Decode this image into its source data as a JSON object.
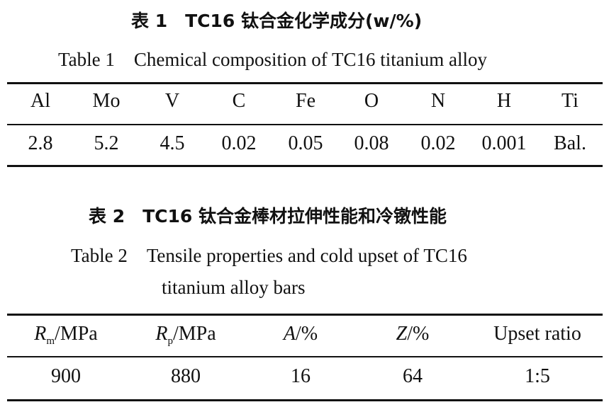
{
  "table1": {
    "title_cn": "表 1　TC16 钛合金化学成分(w/%)",
    "title_en": "Table 1　Chemical composition of TC16 titanium alloy",
    "headers": [
      "Al",
      "Mo",
      "V",
      "C",
      "Fe",
      "O",
      "N",
      "H",
      "Ti"
    ],
    "values": [
      "2.8",
      "5.2",
      "4.5",
      "0.02",
      "0.05",
      "0.08",
      "0.02",
      "0.001",
      "Bal."
    ]
  },
  "table2": {
    "title_cn": "表 2　TC16 钛合金棒材拉伸性能和冷镦性能",
    "title_en_line1": "Table 2　Tensile properties and cold upset of TC16",
    "title_en_line2": "titanium alloy bars",
    "headers": [
      {
        "sym": "R",
        "sub": "m",
        "unit": "/MPa"
      },
      {
        "sym": "R",
        "sub": "p",
        "unit": "/MPa"
      },
      {
        "sym": "A",
        "sub": "",
        "unit": "/%"
      },
      {
        "sym": "Z",
        "sub": "",
        "unit": "/%"
      },
      {
        "sym": "",
        "sub": "",
        "unit": "Upset ratio"
      }
    ],
    "values": [
      "900",
      "880",
      "16",
      "64",
      "1:5"
    ]
  }
}
